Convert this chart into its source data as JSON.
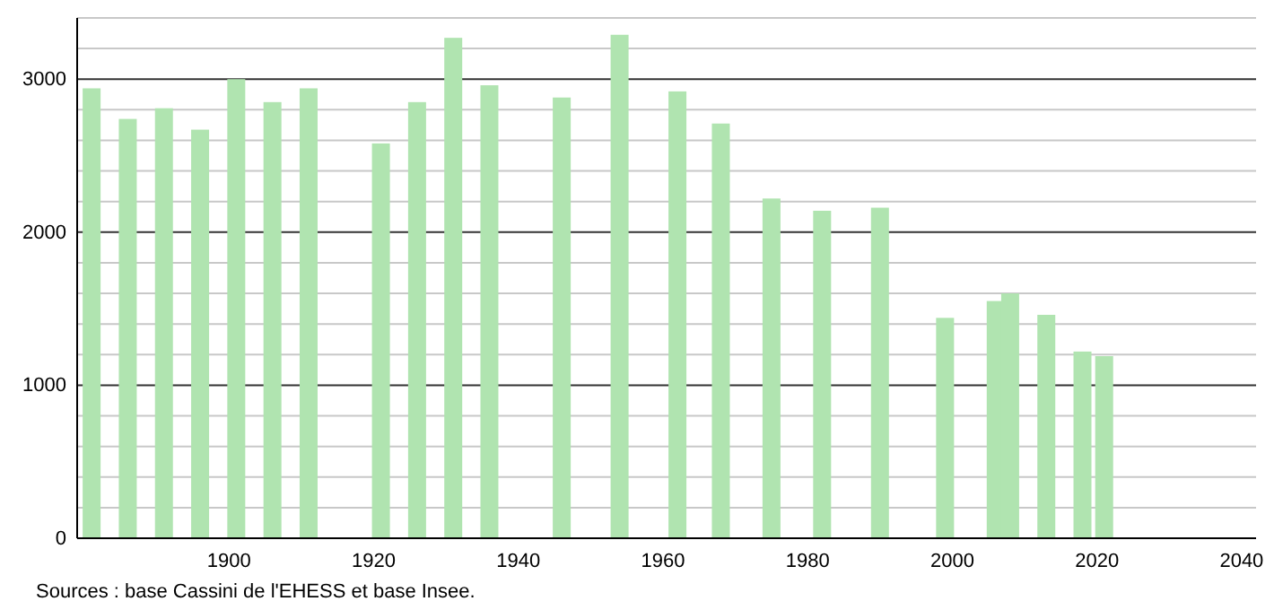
{
  "chart_data": {
    "type": "bar",
    "x": [
      1881,
      1886,
      1891,
      1896,
      1901,
      1906,
      1911,
      1921,
      1926,
      1931,
      1936,
      1946,
      1954,
      1962,
      1968,
      1975,
      1982,
      1990,
      1999,
      2006,
      2008,
      2013,
      2018,
      2021
    ],
    "values": [
      2940,
      2740,
      2810,
      2670,
      3000,
      2850,
      2940,
      2580,
      2850,
      3270,
      2960,
      2880,
      3290,
      2920,
      2710,
      2220,
      2140,
      2160,
      1440,
      1550,
      1600,
      1460,
      1220,
      1190
    ],
    "color": "#b0e4b0",
    "xlim": [
      1879,
      2042
    ],
    "xticks": [
      1900,
      1920,
      1940,
      1960,
      1980,
      2000,
      2020,
      2040
    ],
    "ylim": [
      0,
      3400
    ],
    "yticks": [
      0,
      {
        "value": 200,
        "label": null
      },
      {
        "value": 400,
        "label": null
      },
      {
        "value": 600,
        "label": null
      },
      {
        "value": 800,
        "label": null
      },
      1000,
      {
        "value": 1200,
        "label": null
      },
      {
        "value": 1400,
        "label": null
      },
      {
        "value": 1600,
        "label": null
      },
      {
        "value": 1800,
        "label": null
      },
      2000,
      {
        "value": 2200,
        "label": null
      },
      {
        "value": 2400,
        "label": null
      },
      {
        "value": 2600,
        "label": null
      },
      {
        "value": 2800,
        "label": null
      },
      3000,
      {
        "value": 3200,
        "label": null
      },
      {
        "value": 3400,
        "label": null
      }
    ],
    "grid": "y",
    "annotations": [
      "Sources : base Cassini de l'EHESS et base Insee."
    ]
  }
}
